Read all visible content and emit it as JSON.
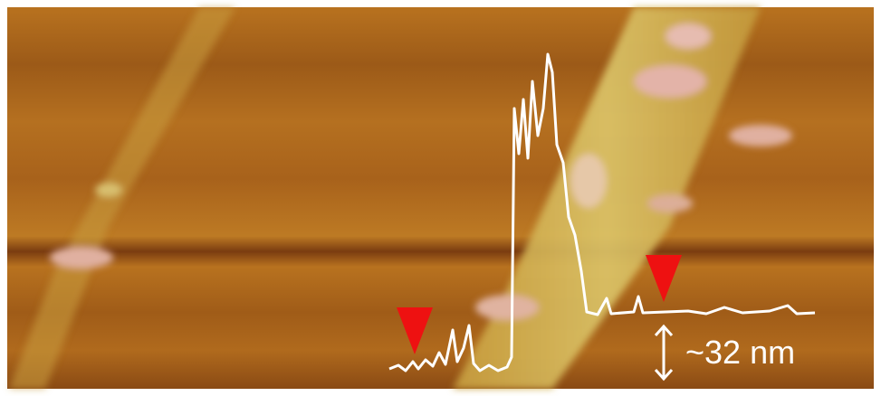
{
  "annotation": {
    "label": "~32 nm"
  }
}
